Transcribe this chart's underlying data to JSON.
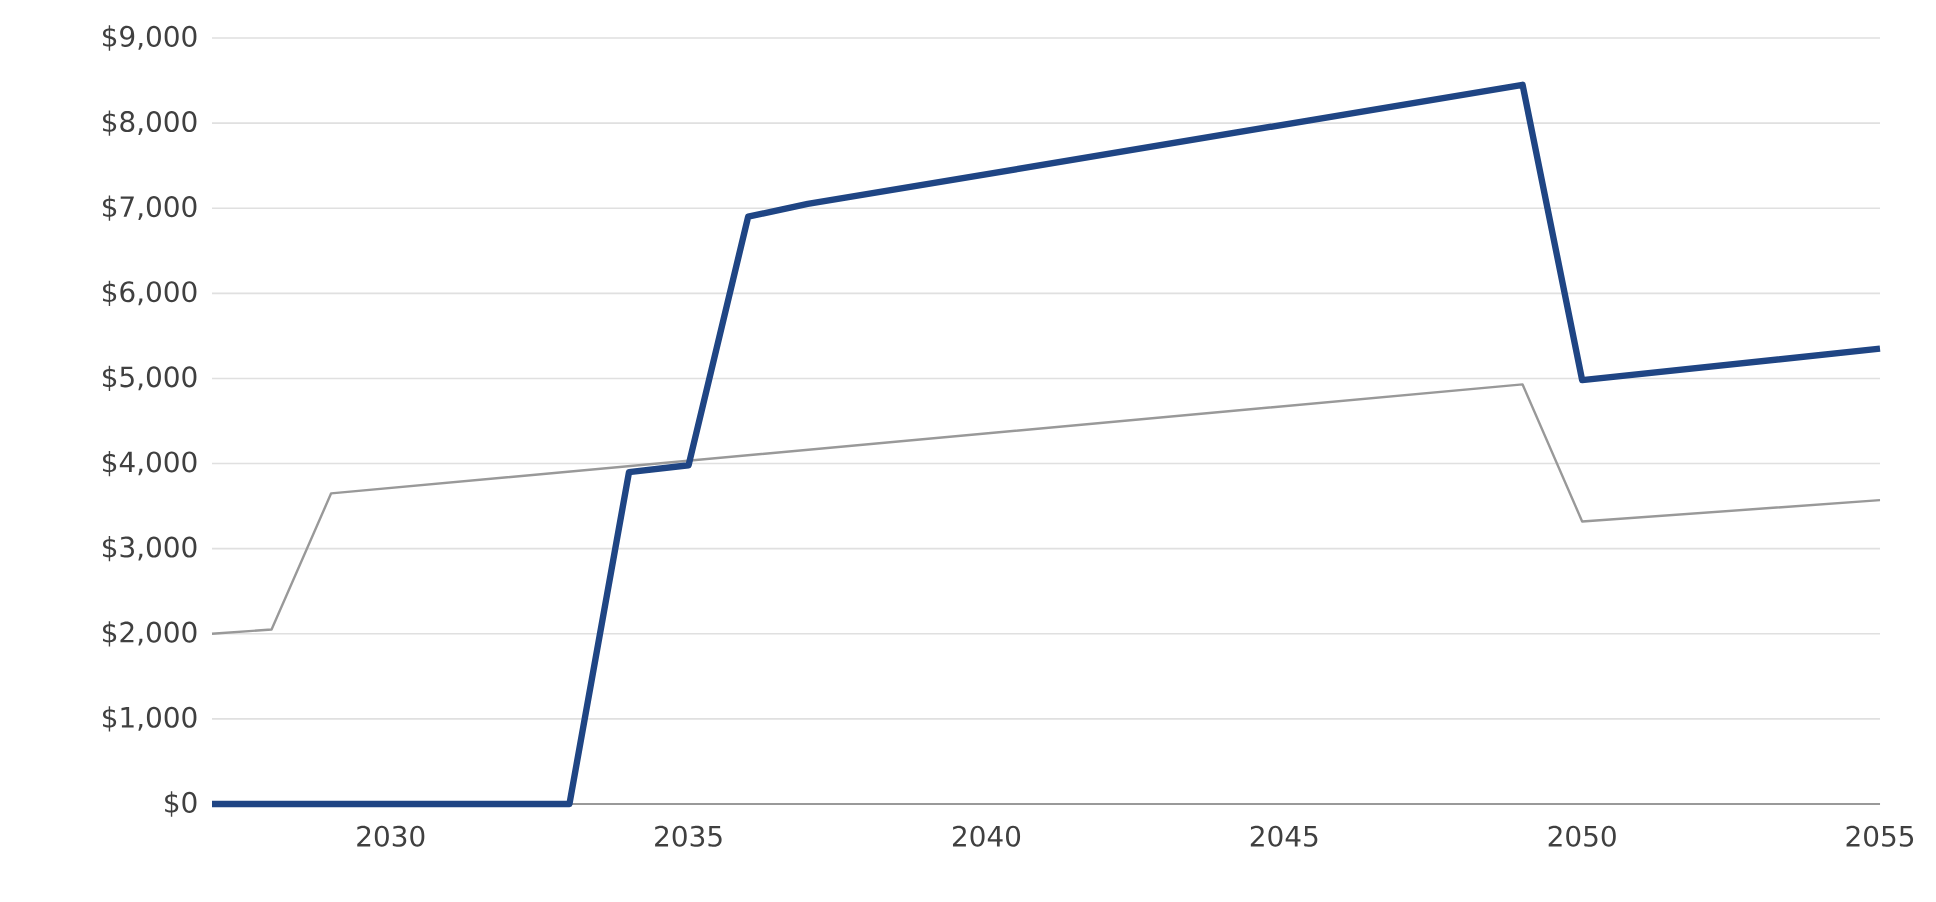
{
  "chart_data": {
    "type": "line",
    "xlim": [
      2027,
      2055
    ],
    "ylim": [
      0,
      9000
    ],
    "xticks": [
      2030,
      2035,
      2040,
      2045,
      2050,
      2055
    ],
    "yticks": [
      {
        "value": 0,
        "label": "$0"
      },
      {
        "value": 1000,
        "label": "$1,000"
      },
      {
        "value": 2000,
        "label": "$2,000"
      },
      {
        "value": 3000,
        "label": "$3,000"
      },
      {
        "value": 4000,
        "label": "$4,000"
      },
      {
        "value": 5000,
        "label": "$5,000"
      },
      {
        "value": 6000,
        "label": "$6,000"
      },
      {
        "value": 7000,
        "label": "$7,000"
      },
      {
        "value": 8000,
        "label": "$8,000"
      },
      {
        "value": 9000,
        "label": "$9,000"
      }
    ],
    "grid": "y",
    "marker": "none",
    "line_style": "solid",
    "series": [
      {
        "color": "#999999",
        "x": [
          2027,
          2028,
          2029,
          2049,
          2050,
          2055
        ],
        "values": [
          2000,
          2050,
          3650,
          4930,
          3320,
          3570
        ]
      },
      {
        "color": "#1f4584",
        "x": [
          2027,
          2033,
          2034,
          2035,
          2036,
          2037,
          2049,
          2050,
          2055
        ],
        "values": [
          0,
          0,
          3900,
          3980,
          6900,
          7050,
          8450,
          4980,
          5350
        ]
      }
    ]
  }
}
